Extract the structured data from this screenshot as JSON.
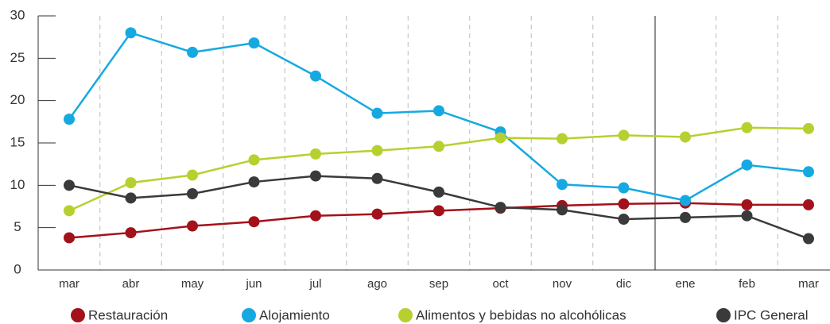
{
  "chart_data": {
    "type": "line",
    "categories": [
      "mar",
      "abr",
      "may",
      "jun",
      "jul",
      "ago",
      "sep",
      "oct",
      "nov",
      "dic",
      "ene",
      "feb",
      "mar"
    ],
    "series": [
      {
        "name": "Restauración",
        "color": "#a3111a",
        "values": [
          3.8,
          4.4,
          5.2,
          5.7,
          6.4,
          6.6,
          7.0,
          7.3,
          7.6,
          7.8,
          7.9,
          7.7,
          7.7
        ]
      },
      {
        "name": "Alojamiento",
        "color": "#16a9e1",
        "values": [
          17.8,
          28.0,
          25.7,
          26.8,
          22.9,
          18.5,
          18.8,
          16.3,
          10.1,
          9.7,
          8.2,
          12.4,
          11.6
        ]
      },
      {
        "name": "Alimentos y bebidas no alcohólicas",
        "color": "#b7d02f",
        "values": [
          7.0,
          10.3,
          11.2,
          13.0,
          13.7,
          14.1,
          14.6,
          15.6,
          15.5,
          15.9,
          15.7,
          16.8,
          16.7
        ]
      },
      {
        "name": "IPC General",
        "color": "#3a3a3a",
        "values": [
          10.0,
          8.5,
          9.0,
          10.4,
          11.1,
          10.8,
          9.2,
          7.4,
          7.1,
          6.0,
          6.2,
          6.4,
          3.7
        ]
      }
    ],
    "ylim": [
      0,
      30
    ],
    "yticks": [
      0,
      5,
      10,
      15,
      20,
      25,
      30
    ],
    "legend": "bottom"
  }
}
